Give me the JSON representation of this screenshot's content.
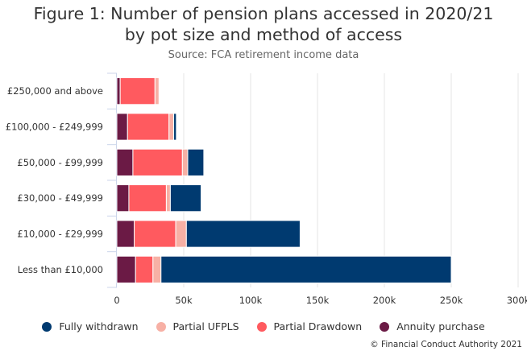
{
  "chart_data": {
    "type": "bar",
    "orientation": "horizontal",
    "stacked": true,
    "title": "Figure 1: Number of pension plans accessed in 2020/21 by pot size and method of access",
    "title_lines": [
      "Figure 1: Number of pension plans accessed in 2020/21",
      "by pot size and method of access"
    ],
    "subtitle": "Source: FCA retirement income data",
    "xlabel": "",
    "ylabel": "",
    "xlim": [
      0,
      300000
    ],
    "x_ticks": [
      0,
      50000,
      100000,
      150000,
      200000,
      250000,
      300000
    ],
    "x_tick_labels": [
      "0",
      "50k",
      "100k",
      "150k",
      "200k",
      "250k",
      "300k"
    ],
    "grid": "vertical",
    "legend_position": "bottom",
    "categories": [
      "£250,000 and above",
      "£100,000 - £249,999",
      "£50,000 - £99,999",
      "£30,000 - £49,999",
      "£10,000 - £29,999",
      "Less than £10,000"
    ],
    "stack_order": [
      "Annuity purchase",
      "Partial Drawdown",
      "Partial UFPLS",
      "Fully withdrawn"
    ],
    "series": [
      {
        "name": "Fully withdrawn",
        "color": "#003a70",
        "values": [
          0,
          2000,
          12000,
          23000,
          85000,
          217000
        ]
      },
      {
        "name": "Partial UFPLS",
        "color": "#f7b0a5",
        "values": [
          3000,
          3500,
          4000,
          3000,
          8000,
          6000
        ]
      },
      {
        "name": "Partial Drawdown",
        "color": "#ff5a5f",
        "values": [
          26000,
          31000,
          37000,
          28000,
          31000,
          13000
        ]
      },
      {
        "name": "Annuity purchase",
        "color": "#6b1a45",
        "values": [
          2500,
          8000,
          12000,
          9000,
          13000,
          14000
        ]
      }
    ]
  },
  "legend": [
    {
      "label": "Fully withdrawn",
      "color": "#003a70"
    },
    {
      "label": "Partial UFPLS",
      "color": "#f7b0a5"
    },
    {
      "label": "Partial Drawdown",
      "color": "#ff5a5f"
    },
    {
      "label": "Annuity purchase",
      "color": "#6b1a45"
    }
  ],
  "credit": "© Financial Conduct Authority 2021"
}
